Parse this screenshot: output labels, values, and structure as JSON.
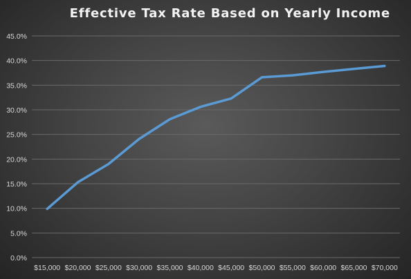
{
  "chart_data": {
    "type": "line",
    "title": "Effective Tax Rate Based on Yearly Income",
    "xlabel": "",
    "ylabel": "",
    "x": [
      "$15,000",
      "$20,000",
      "$25,000",
      "$30,000",
      "$35,000",
      "$40,000",
      "$45,000",
      "$50,000",
      "$55,000",
      "$60,000",
      "$65,000",
      "$70,000"
    ],
    "yticks": [
      "0.0%",
      "5.0%",
      "10.0%",
      "15.0%",
      "20.0%",
      "25.0%",
      "30.0%",
      "35.0%",
      "40.0%",
      "45.0%"
    ],
    "ylim": [
      0,
      45
    ],
    "grid": true,
    "legend": "none",
    "series": [
      {
        "values": [
          9.9,
          15.3,
          19.0,
          24.1,
          28.1,
          30.6,
          32.3,
          36.6,
          37.0,
          37.7,
          38.3,
          38.9
        ],
        "color": "#5b9bd5"
      }
    ]
  }
}
